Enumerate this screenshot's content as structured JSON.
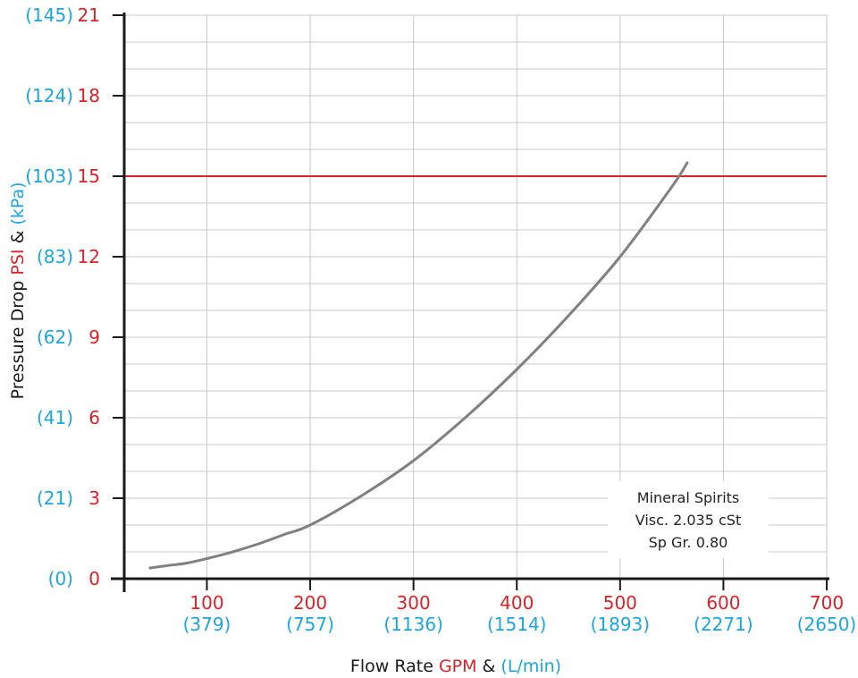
{
  "chart_data": {
    "type": "line",
    "xlabel": {
      "prefix": "Flow Rate ",
      "primary_unit": "GPM",
      "joiner": " & ",
      "secondary_unit": "(L/min)"
    },
    "ylabel": {
      "prefix": "Pressure Drop ",
      "primary_unit": "PSI",
      "joiner": " & ",
      "secondary_unit": "(kPa)"
    },
    "xlim": [
      20,
      700
    ],
    "ylim": [
      0,
      21
    ],
    "x_ticks": [
      {
        "value": 100,
        "label": "100",
        "sub": "(379)"
      },
      {
        "value": 200,
        "label": "200",
        "sub": "(757)"
      },
      {
        "value": 300,
        "label": "300",
        "sub": "(1136)"
      },
      {
        "value": 400,
        "label": "400",
        "sub": "(1514)"
      },
      {
        "value": 500,
        "label": "500",
        "sub": "(1893)"
      },
      {
        "value": 600,
        "label": "600",
        "sub": "(2271)"
      },
      {
        "value": 700,
        "label": "700",
        "sub": "(2650)"
      }
    ],
    "y_ticks": [
      {
        "value": 0,
        "label": "0",
        "sub": "(0)"
      },
      {
        "value": 3,
        "label": "3",
        "sub": "(21)"
      },
      {
        "value": 6,
        "label": "6",
        "sub": "(41)"
      },
      {
        "value": 9,
        "label": "9",
        "sub": "(62)"
      },
      {
        "value": 12,
        "label": "12",
        "sub": "(83)"
      },
      {
        "value": 15,
        "label": "15",
        "sub": "(103)"
      },
      {
        "value": 18,
        "label": "18",
        "sub": "(124)"
      },
      {
        "value": 21,
        "label": "21",
        "sub": "(145)"
      }
    ],
    "grid": true,
    "reference_line": {
      "y": 15,
      "color": "#d8232a"
    },
    "series": [
      {
        "color": "#808080",
        "x": [
          45,
          60,
          80,
          100,
          125,
          150,
          175,
          200,
          250,
          300,
          350,
          400,
          450,
          500,
          550,
          565
        ],
        "y": [
          0.4,
          0.48,
          0.58,
          0.75,
          1.0,
          1.3,
          1.65,
          2.0,
          3.1,
          4.4,
          6.0,
          7.8,
          9.8,
          12.0,
          14.6,
          15.5
        ]
      }
    ],
    "annotation": [
      "Mineral Spirits",
      "Visc. 2.035 cSt",
      "Sp Gr. 0.80"
    ],
    "colors": {
      "primary_unit": "#d8232a",
      "secondary_unit": "#1aa6dd",
      "grid": "#c8c8c8",
      "axis": "#1a1a1a"
    }
  }
}
